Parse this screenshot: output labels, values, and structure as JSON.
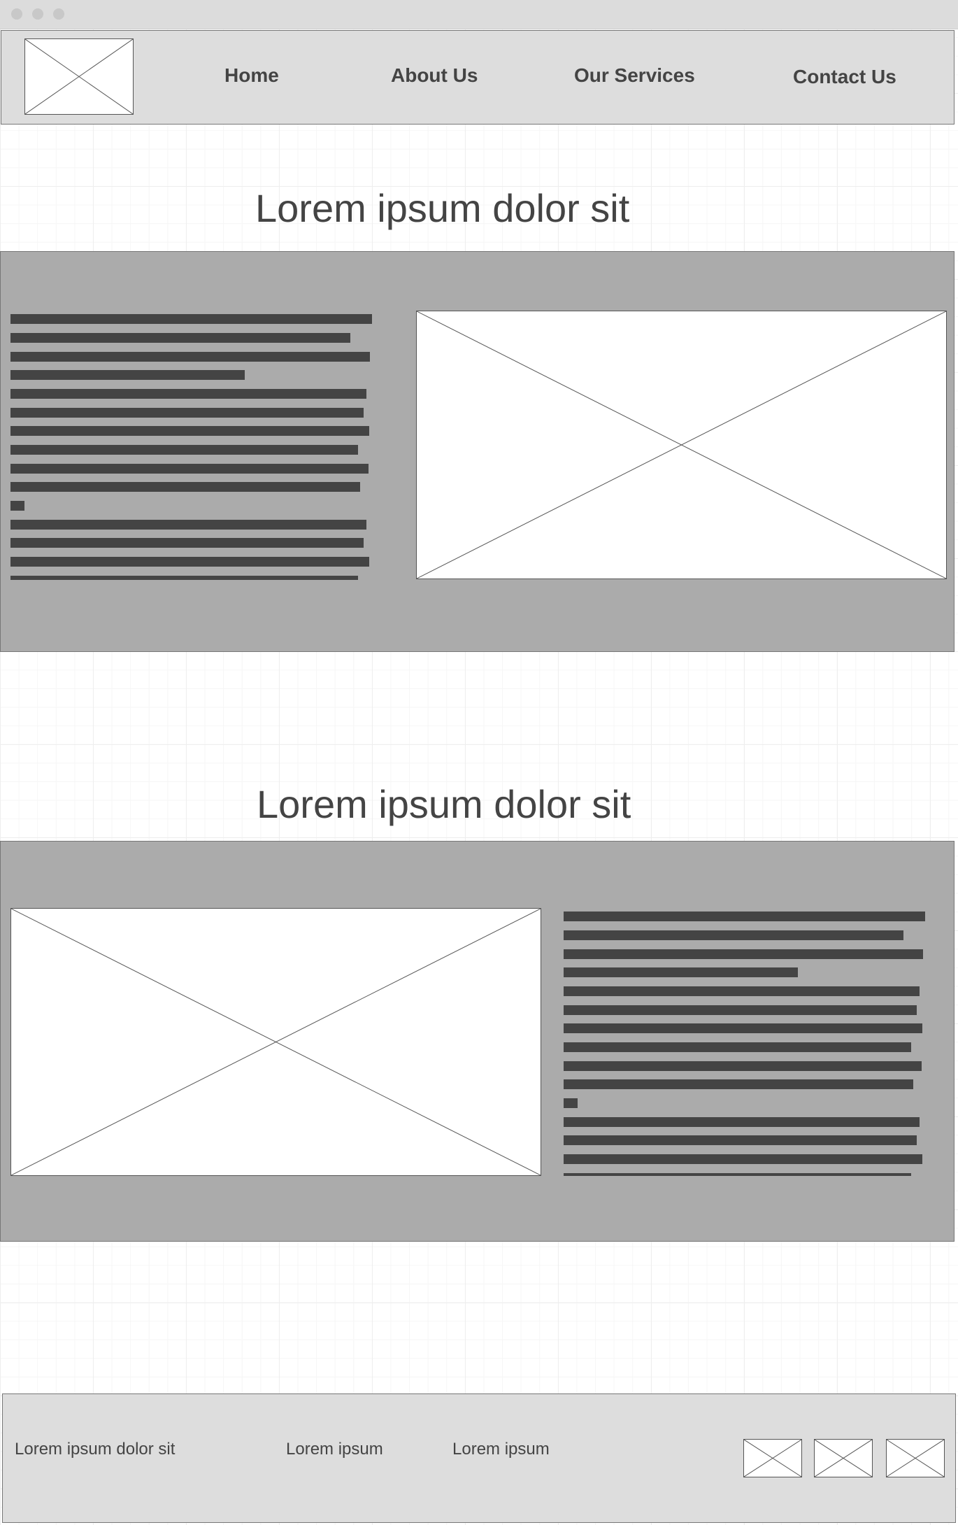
{
  "header": {
    "nav": [
      {
        "label": "Home"
      },
      {
        "label": "About Us"
      },
      {
        "label": "Our Services"
      },
      {
        "label": "Contact Us"
      }
    ]
  },
  "sections": [
    {
      "title": "Lorem ipsum dolor sit"
    },
    {
      "title": "Lorem ipsum dolor sit"
    }
  ],
  "footer": {
    "col1": "Lorem ipsum dolor sit",
    "col2": "Lorem ipsum",
    "col3": "Lorem ipsum",
    "icons": [
      "image-placeholder-icon",
      "image-placeholder-icon",
      "image-placeholder-icon"
    ]
  },
  "colors": {
    "header_bg": "#dddddd",
    "band_bg": "#ababab",
    "text_bar": "#444444"
  }
}
